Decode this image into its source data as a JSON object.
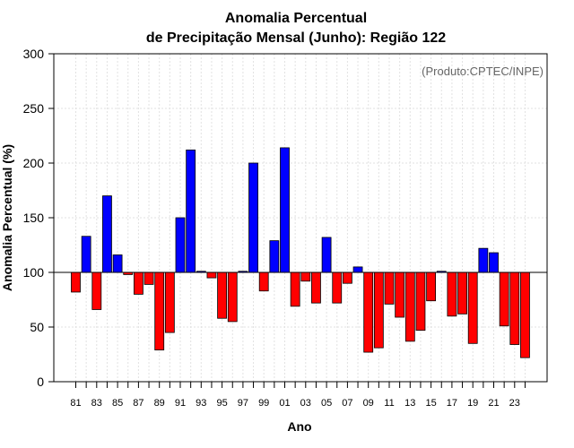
{
  "chart_data": {
    "type": "bar",
    "title_line1": "Anomalia Percentual",
    "title_line2": "de Precipitação Mensal (Junho): Região 122",
    "xlabel": "Ano",
    "ylabel": "Anomalia Percentual (%)",
    "credit": "(Produto:CPTEC/INPE)",
    "ylim": [
      0,
      300
    ],
    "yticks": [
      0,
      50,
      100,
      150,
      200,
      250,
      300
    ],
    "baseline": 100,
    "grid": true,
    "colors": {
      "above": "#0000ff",
      "below": "#ff0000",
      "outline": "#000000"
    },
    "categories": [
      "81",
      "82",
      "83",
      "84",
      "85",
      "86",
      "87",
      "88",
      "89",
      "90",
      "91",
      "92",
      "93",
      "94",
      "95",
      "96",
      "97",
      "98",
      "99",
      "00",
      "01",
      "02",
      "03",
      "04",
      "05",
      "06",
      "07",
      "08",
      "09",
      "10",
      "11",
      "12",
      "13",
      "14",
      "15",
      "16",
      "17",
      "18",
      "19",
      "20",
      "21",
      "22",
      "23",
      "24"
    ],
    "xtick_labels": [
      "81",
      "83",
      "85",
      "87",
      "89",
      "91",
      "93",
      "95",
      "97",
      "99",
      "01",
      "03",
      "05",
      "07",
      "09",
      "11",
      "13",
      "15",
      "17",
      "19",
      "21",
      "23"
    ],
    "values": [
      82,
      133,
      66,
      170,
      116,
      98,
      80,
      89,
      29,
      45,
      150,
      212,
      101,
      95,
      58,
      55,
      101,
      200,
      83,
      129,
      214,
      69,
      92,
      72,
      132,
      72,
      90,
      105,
      27,
      31,
      71,
      59,
      37,
      47,
      74,
      101,
      60,
      62,
      35,
      122,
      118,
      51,
      34,
      22
    ]
  }
}
